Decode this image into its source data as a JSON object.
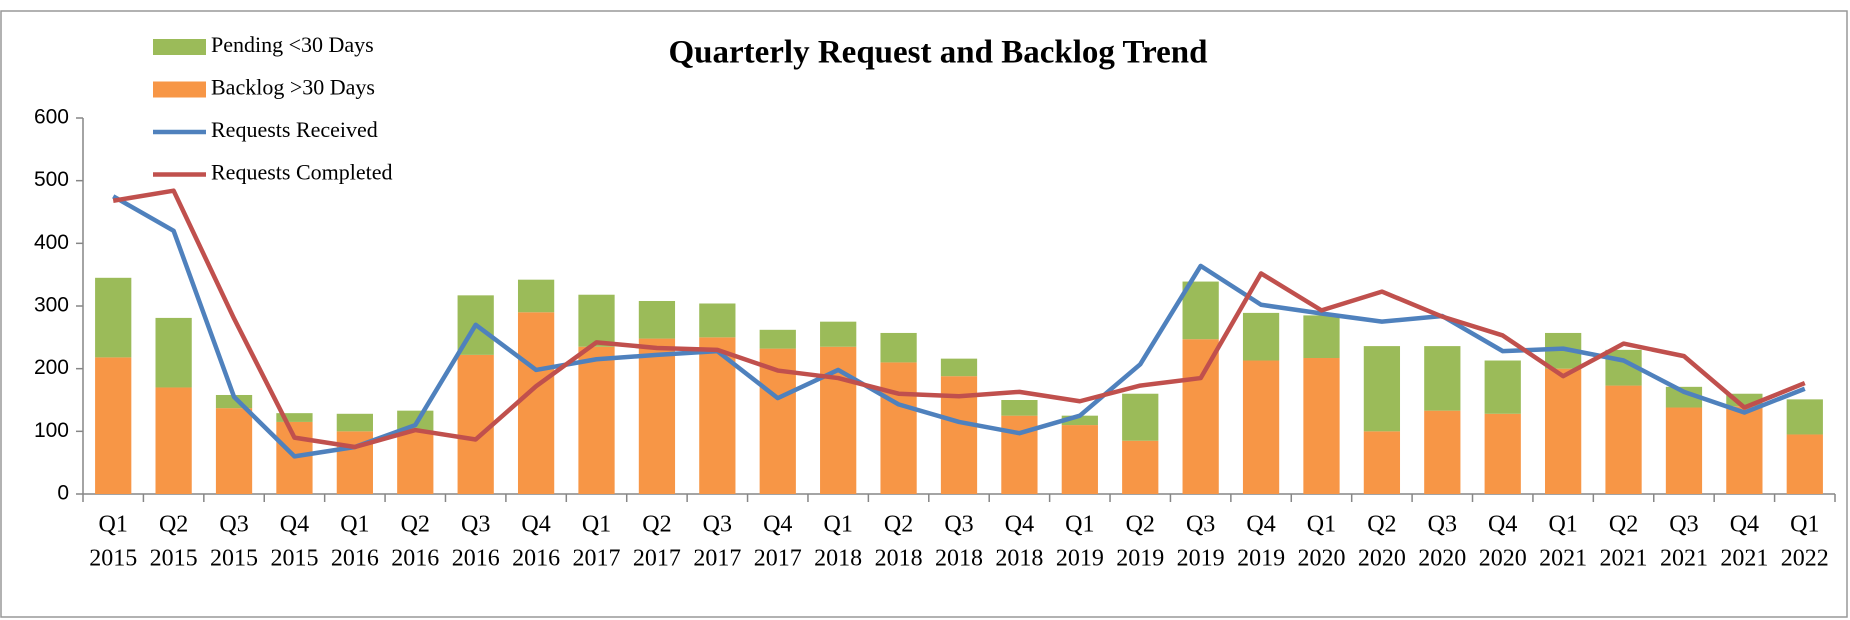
{
  "chart_data": {
    "type": "bar",
    "stacked": true,
    "title": "Quarterly Request and Backlog Trend",
    "categories": [
      [
        "Q1",
        "2015"
      ],
      [
        "Q2",
        "2015"
      ],
      [
        "Q3",
        "2015"
      ],
      [
        "Q4",
        "2015"
      ],
      [
        "Q1",
        "2016"
      ],
      [
        "Q2",
        "2016"
      ],
      [
        "Q3",
        "2016"
      ],
      [
        "Q4",
        "2016"
      ],
      [
        "Q1",
        "2017"
      ],
      [
        "Q2",
        "2017"
      ],
      [
        "Q3",
        "2017"
      ],
      [
        "Q4",
        "2017"
      ],
      [
        "Q1",
        "2018"
      ],
      [
        "Q2",
        "2018"
      ],
      [
        "Q3",
        "2018"
      ],
      [
        "Q4",
        "2018"
      ],
      [
        "Q1",
        "2019"
      ],
      [
        "Q2",
        "2019"
      ],
      [
        "Q3",
        "2019"
      ],
      [
        "Q4",
        "2019"
      ],
      [
        "Q1",
        "2020"
      ],
      [
        "Q2",
        "2020"
      ],
      [
        "Q3",
        "2020"
      ],
      [
        "Q4",
        "2020"
      ],
      [
        "Q1",
        "2021"
      ],
      [
        "Q2",
        "2021"
      ],
      [
        "Q3",
        "2021"
      ],
      [
        "Q4",
        "2021"
      ],
      [
        "Q1",
        "2022"
      ]
    ],
    "series": [
      {
        "name": "Pending <30 Days",
        "type": "bar",
        "stack_order": 1,
        "color": "#9bbb59",
        "values": [
          127,
          111,
          21,
          14,
          28,
          33,
          95,
          52,
          83,
          60,
          54,
          30,
          40,
          47,
          28,
          25,
          15,
          75,
          92,
          76,
          68,
          136,
          103,
          85,
          57,
          57,
          33,
          20,
          56
        ]
      },
      {
        "name": "Backlog >30 Days",
        "type": "bar",
        "stack_order": 0,
        "color": "#f79646",
        "values": [
          218,
          170,
          137,
          115,
          100,
          100,
          222,
          290,
          235,
          248,
          250,
          232,
          235,
          210,
          188,
          125,
          110,
          85,
          247,
          213,
          217,
          100,
          133,
          128,
          200,
          173,
          138,
          140,
          95
        ]
      },
      {
        "name": "Requests Received",
        "type": "line",
        "color": "#4f81bd",
        "values": [
          475,
          420,
          155,
          60,
          75,
          110,
          270,
          198,
          215,
          222,
          228,
          153,
          198,
          143,
          115,
          97,
          125,
          207,
          364,
          302,
          288,
          275,
          284,
          228,
          232,
          213,
          163,
          130,
          168
        ]
      },
      {
        "name": "Requests Completed",
        "type": "line",
        "color": "#c0504d",
        "values": [
          468,
          484,
          280,
          90,
          75,
          102,
          87,
          172,
          242,
          233,
          230,
          197,
          185,
          160,
          156,
          163,
          148,
          173,
          185,
          352,
          293,
          323,
          283,
          253,
          188,
          240,
          220,
          138,
          177
        ]
      }
    ],
    "ylim": [
      0,
      600
    ],
    "yticks": [
      0,
      100,
      200,
      300,
      400,
      500,
      600
    ],
    "grid": false,
    "legend": "top-left"
  }
}
